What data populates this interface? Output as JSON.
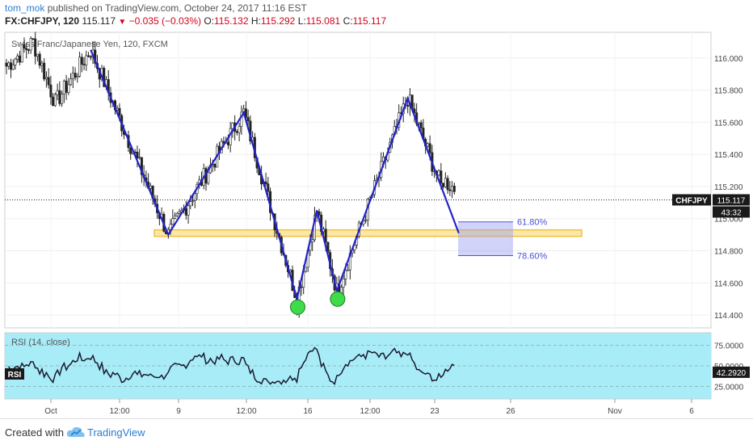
{
  "header": {
    "user": "tom_mok",
    "published_text": "published on TradingView.com, October 24, 2017 11:16 EST",
    "symbol": "FX:CHFJPY, 120",
    "last": "115.117",
    "change": "−0.035 (−0.03%)",
    "o_label": "O:",
    "o_value": "115.132",
    "h_label": "H:",
    "h_value": "115.292",
    "l_label": "L:",
    "l_value": "115.081",
    "c_label": "C:",
    "c_value": "115.117"
  },
  "chart": {
    "pair_title": "Swiss Franc/Japanese Yen, 120, FXCM",
    "price_badge_symbol": "CHFJPY",
    "price_badge_value": "115.117",
    "countdown": "43:32",
    "fib_labels": [
      "61.80%",
      "78.60%"
    ],
    "rsi_title": "RSI (14, close)",
    "rsi_tag": "RSI",
    "rsi_value": "42.2920",
    "colors": {
      "pattern_line": "#2323c8",
      "neckline": "#f0c040",
      "fib_box": "#9aa0f0",
      "rsi_band": "#a8ecf7",
      "target_circle": "#3fdc4a"
    }
  },
  "chart_data": {
    "type": "candlestick",
    "x_ticks": [
      "Oct",
      "12:00",
      "9",
      "12:00",
      "16",
      "12:00",
      "23",
      "26",
      "Nov",
      "6"
    ],
    "y_ticks": [
      "116.000",
      "115.800",
      "115.600",
      "115.400",
      "115.200",
      "115.000",
      "114.800",
      "114.600",
      "114.400"
    ],
    "ylim": [
      114.32,
      116.16
    ],
    "last_price": 115.117,
    "pattern": [
      {
        "i": 38,
        "y": 116.05
      },
      {
        "i": 73,
        "y": 114.9
      },
      {
        "i": 107,
        "y": 115.66
      },
      {
        "i": 131,
        "y": 114.5
      },
      {
        "i": 140,
        "y": 115.05
      },
      {
        "i": 149,
        "y": 114.55
      },
      {
        "i": 181,
        "y": 115.75
      },
      {
        "i": 204,
        "y": 114.91
      }
    ],
    "neckline_price": 114.91,
    "fib_levels": [
      {
        "label": "61.80%",
        "price": 114.98
      },
      {
        "label": "78.60%",
        "price": 114.77
      }
    ],
    "rsi_ticks": [
      "75.0000",
      "50.0000",
      "25.0000"
    ],
    "rsi_ylim": [
      10,
      90
    ],
    "rsi_band": [
      30,
      70
    ],
    "rsi_last": 42.292
  }
}
